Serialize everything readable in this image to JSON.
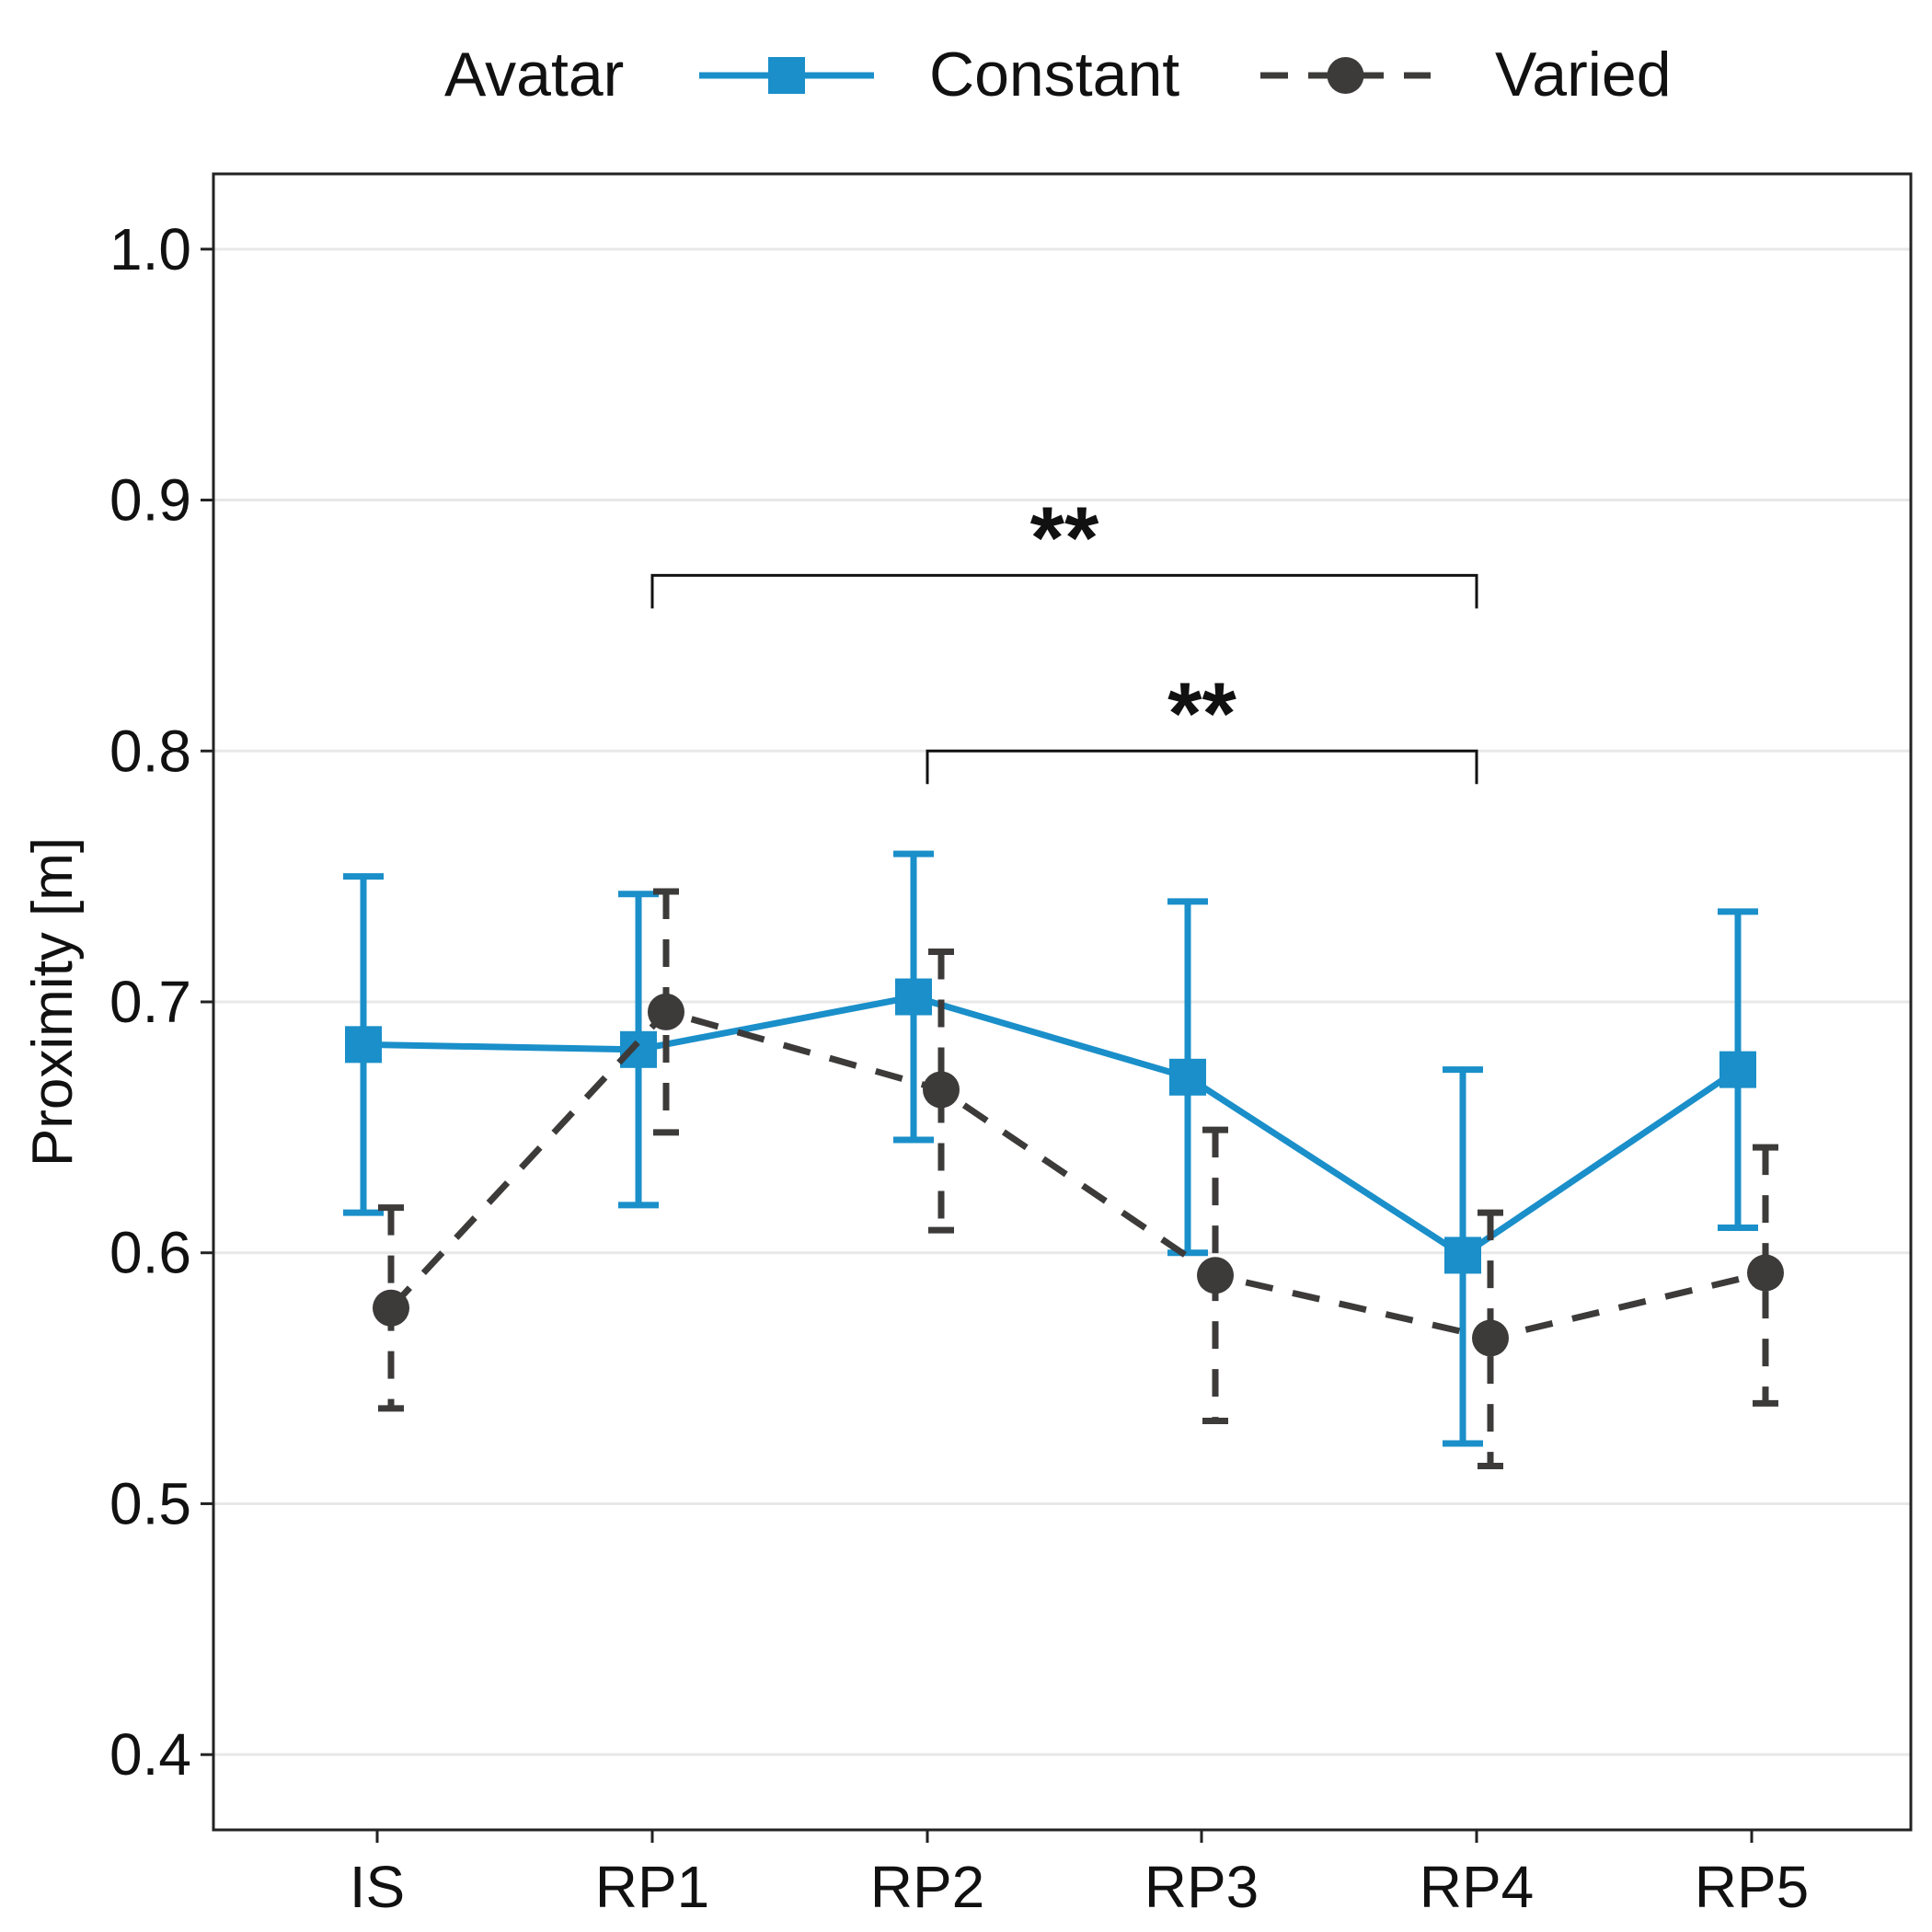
{
  "chart_data": {
    "type": "line",
    "title": "",
    "xlabel": "",
    "ylabel": "Proximity [m]",
    "categories": [
      "IS",
      "RP1",
      "RP2",
      "RP3",
      "RP4",
      "RP5"
    ],
    "ylim": [
      0.37,
      1.03
    ],
    "yticks": [
      0.4,
      0.5,
      0.6,
      0.7,
      0.8,
      0.9,
      1.0
    ],
    "ytick_labels": [
      "0.4",
      "0.5",
      "0.6",
      "0.7",
      "0.8",
      "0.9",
      "1.0"
    ],
    "grid": true,
    "legend": {
      "title": "Avatar",
      "position": "top"
    },
    "series": [
      {
        "name": "Constant",
        "color": "#1a8fc9",
        "line_style": "solid",
        "marker": "square",
        "values": [
          0.683,
          0.681,
          0.702,
          0.67,
          0.599,
          0.673
        ],
        "error_low": [
          0.616,
          0.619,
          0.645,
          0.6,
          0.524,
          0.61
        ],
        "error_high": [
          0.75,
          0.743,
          0.759,
          0.74,
          0.673,
          0.736
        ]
      },
      {
        "name": "Varied",
        "color": "#3d3a3a",
        "line_style": "dashed",
        "marker": "circle",
        "values": [
          0.578,
          0.696,
          0.665,
          0.591,
          0.566,
          0.592
        ],
        "error_low": [
          0.538,
          0.648,
          0.609,
          0.533,
          0.515,
          0.54
        ],
        "error_high": [
          0.618,
          0.744,
          0.72,
          0.649,
          0.616,
          0.642
        ]
      }
    ],
    "annotations": [
      {
        "from": "RP1",
        "to": "RP4",
        "y": 0.87,
        "label": "**"
      },
      {
        "from": "RP2",
        "to": "RP4",
        "y": 0.8,
        "label": "**"
      }
    ]
  }
}
